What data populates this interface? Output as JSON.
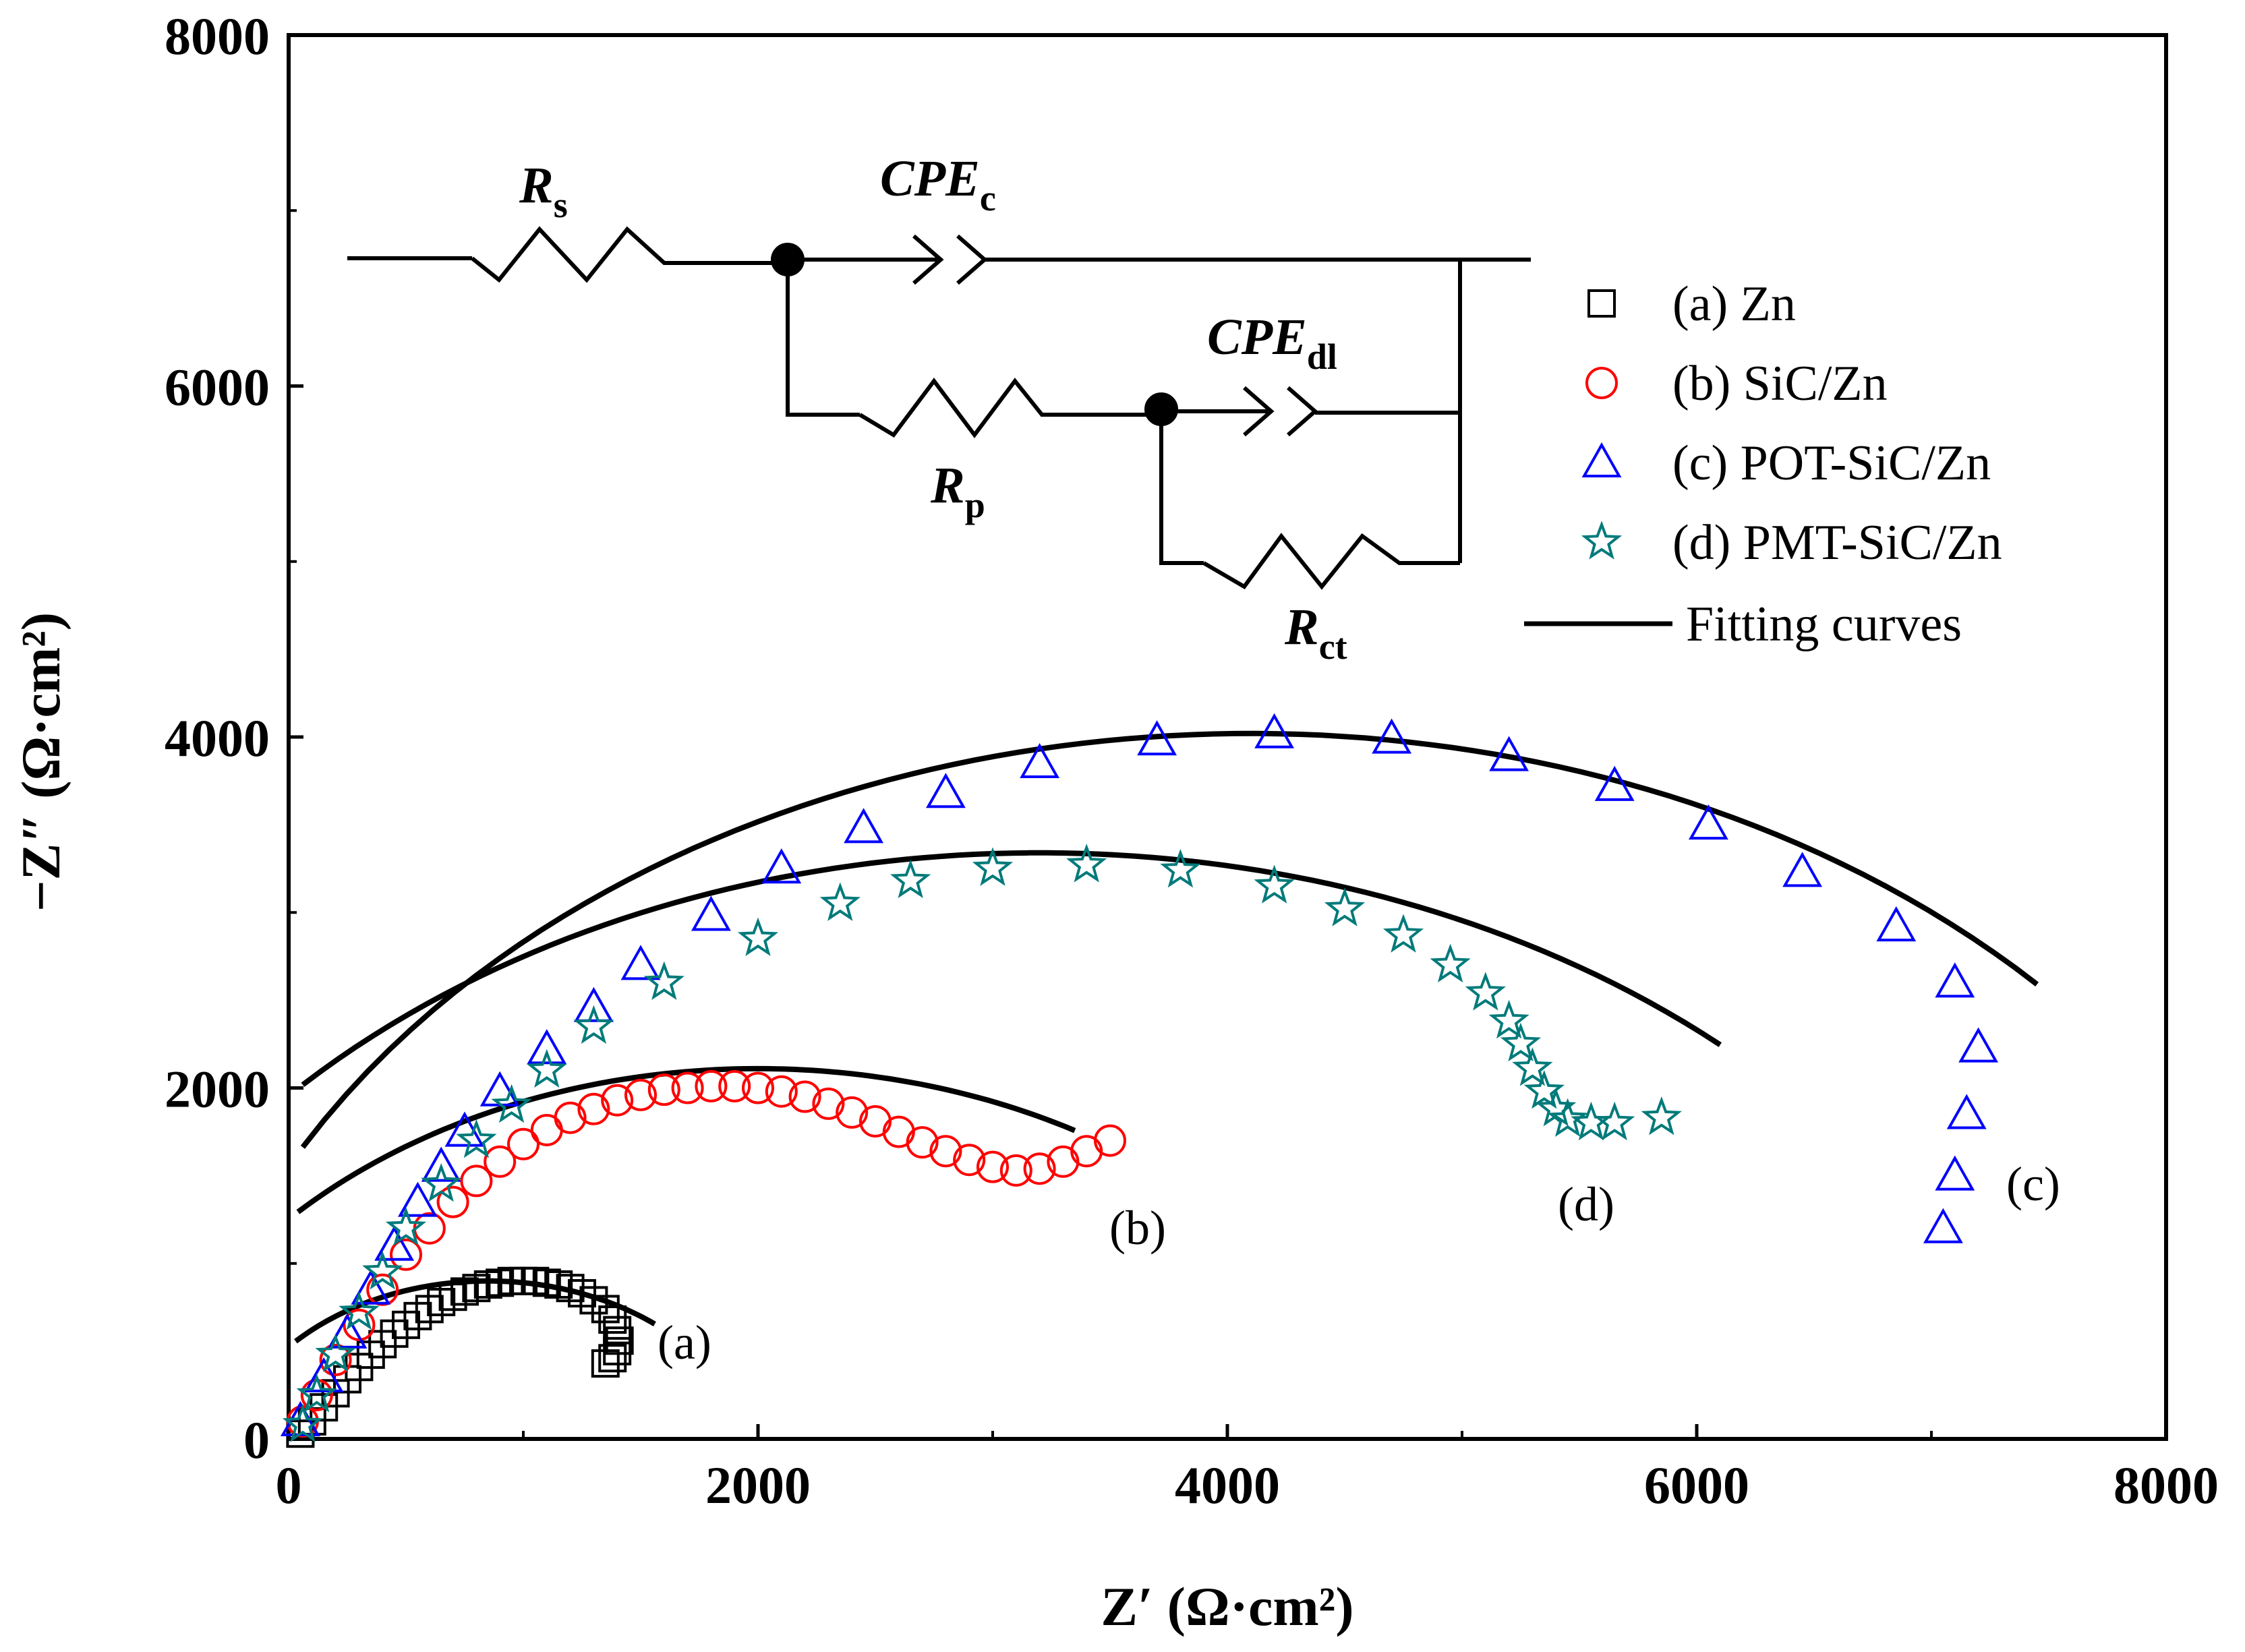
{
  "chart_data": {
    "type": "scatter",
    "title": "",
    "xlabel": "Z′ (Ω·cm²)",
    "ylabel": "−Z″ (Ω·cm²)",
    "xlim": [
      0,
      8000
    ],
    "ylim": [
      0,
      8000
    ],
    "x_ticks": [
      "0",
      "2000",
      "4000",
      "6000",
      "8000"
    ],
    "y_ticks": [
      "0",
      "2000",
      "4000",
      "6000",
      "8000"
    ],
    "legend_position": "top-right",
    "legend": [
      {
        "label": "(a) Zn",
        "marker": "square",
        "color": "#000000"
      },
      {
        "label": "(b) SiC/Zn",
        "marker": "circle",
        "color": "#ff0000"
      },
      {
        "label": "(c) POT-SiC/Zn",
        "marker": "triangle",
        "color": "#0000ff"
      },
      {
        "label": "(d) PMT-SiC/Zn",
        "marker": "star",
        "color": "#007a7a"
      },
      {
        "label": "Fitting curves",
        "marker": "line",
        "color": "#000000"
      }
    ],
    "series": [
      {
        "name": "(a) Zn",
        "marker": "square",
        "color": "#000000",
        "tag": "(a)",
        "x": [
          50,
          100,
          150,
          200,
          250,
          300,
          350,
          400,
          450,
          500,
          550,
          600,
          650,
          700,
          750,
          800,
          850,
          900,
          950,
          1000,
          1050,
          1100,
          1150,
          1200,
          1250,
          1300,
          1350,
          1380,
          1400,
          1410,
          1400,
          1380,
          1350
        ],
        "y": [
          30,
          100,
          180,
          260,
          340,
          410,
          480,
          540,
          600,
          650,
          700,
          740,
          780,
          810,
          840,
          860,
          880,
          890,
          900,
          900,
          900,
          890,
          880,
          860,
          830,
          790,
          740,
          680,
          620,
          560,
          500,
          460,
          430
        ]
      },
      {
        "name": "(b) SiC/Zn",
        "marker": "circle",
        "color": "#ff0000",
        "tag": "(b)",
        "x": [
          60,
          120,
          200,
          300,
          400,
          500,
          600,
          700,
          800,
          900,
          1000,
          1100,
          1200,
          1300,
          1400,
          1500,
          1600,
          1700,
          1800,
          1900,
          2000,
          2100,
          2200,
          2300,
          2400,
          2500,
          2600,
          2700,
          2800,
          2900,
          3000,
          3100,
          3200,
          3300,
          3400,
          3500
        ],
        "y": [
          100,
          250,
          450,
          650,
          850,
          1050,
          1200,
          1350,
          1470,
          1580,
          1680,
          1760,
          1830,
          1880,
          1930,
          1960,
          1990,
          2000,
          2010,
          2010,
          2000,
          1980,
          1950,
          1910,
          1860,
          1810,
          1750,
          1690,
          1640,
          1590,
          1550,
          1530,
          1540,
          1580,
          1640,
          1700
        ]
      },
      {
        "name": "(c) POT-SiC/Zn",
        "marker": "triangle",
        "color": "#0000ff",
        "tag": "(c)",
        "x": [
          50,
          150,
          250,
          350,
          450,
          550,
          650,
          750,
          900,
          1100,
          1300,
          1500,
          1800,
          2100,
          2450,
          2800,
          3200,
          3700,
          4200,
          4700,
          5200,
          5650,
          6050,
          6450,
          6850,
          7100,
          7200,
          7150,
          7100,
          7050
        ],
        "y": [
          100,
          350,
          600,
          850,
          1100,
          1350,
          1550,
          1750,
          1980,
          2220,
          2460,
          2700,
          2980,
          3250,
          3480,
          3680,
          3850,
          3980,
          4020,
          3990,
          3890,
          3720,
          3500,
          3230,
          2920,
          2600,
          2230,
          1850,
          1500,
          1200
        ]
      },
      {
        "name": "(d) PMT-SiC/Zn",
        "marker": "star",
        "color": "#007a7a",
        "tag": "(d)",
        "x": [
          60,
          120,
          200,
          300,
          400,
          500,
          650,
          800,
          950,
          1100,
          1300,
          1600,
          2000,
          2350,
          2650,
          3000,
          3400,
          3800,
          4200,
          4500,
          4750,
          4950,
          5100,
          5200,
          5250,
          5300,
          5350,
          5400,
          5450,
          5550,
          5650,
          5850
        ],
        "y": [
          80,
          250,
          480,
          720,
          950,
          1200,
          1450,
          1700,
          1900,
          2100,
          2350,
          2600,
          2850,
          3050,
          3180,
          3250,
          3270,
          3240,
          3150,
          3020,
          2870,
          2700,
          2540,
          2380,
          2250,
          2110,
          1980,
          1880,
          1820,
          1800,
          1800,
          1830
        ]
      }
    ],
    "fits": [
      {
        "name": "fit-a",
        "center": [
          850,
          -250
        ],
        "radius": 1150,
        "x_range": [
          30,
          1560
        ]
      },
      {
        "name": "fit-b",
        "center": [
          2000,
          -650
        ],
        "radius": 2760,
        "x_range": [
          40,
          3350
        ]
      },
      {
        "name": "fit-c",
        "center": [
          4100,
          -620
        ],
        "radius": 4640,
        "x_range": [
          60,
          7450
        ]
      },
      {
        "name": "fit-d",
        "center": [
          3200,
          -1050
        ],
        "radius": 4390,
        "x_range": [
          60,
          6100
        ]
      }
    ],
    "inset": {
      "title": "equivalent circuit",
      "elements": [
        {
          "main": "R",
          "sub": "s"
        },
        {
          "main": "CPE",
          "sub": "c"
        },
        {
          "main": "R",
          "sub": "p"
        },
        {
          "main": "CPE",
          "sub": "dl"
        },
        {
          "main": "R",
          "sub": "ct"
        }
      ]
    }
  }
}
